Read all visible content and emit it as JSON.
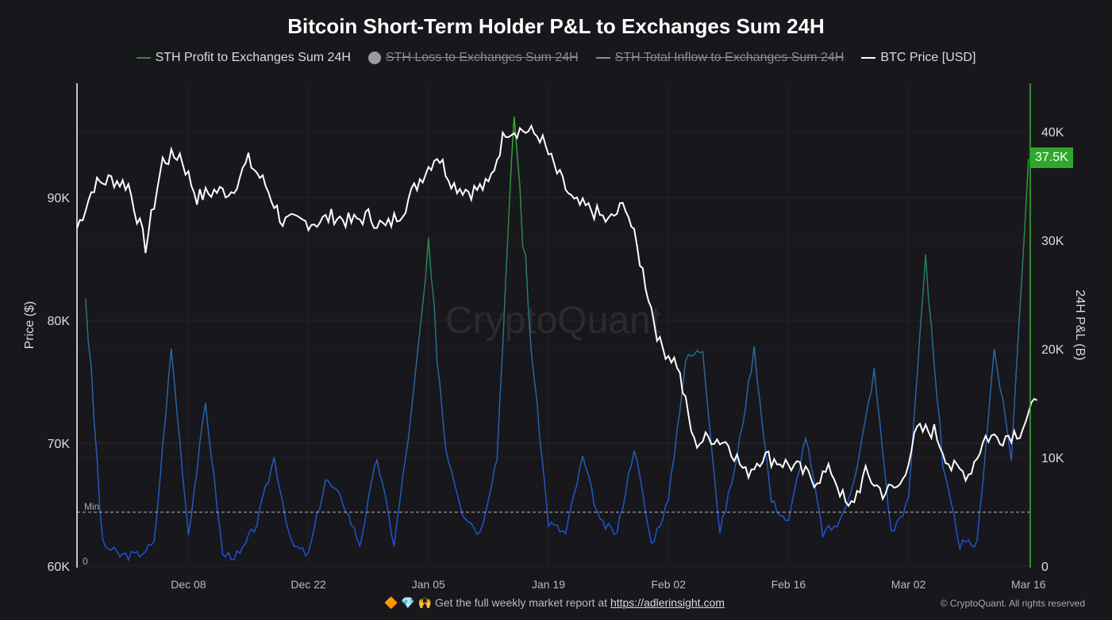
{
  "chart_data": {
    "type": "line",
    "title": "Bitcoin Short-Term Holder P&L to Exchanges Sum 24H",
    "legend": [
      {
        "label": "STH Profit to Exchanges Sum 24H",
        "color": "#3a8a3a",
        "enabled": true
      },
      {
        "label": "STH Loss to Exchanges Sum 24H",
        "color": "#9a9aa2",
        "enabled": false
      },
      {
        "label": "STH Total Inflow to Exchanges Sum 24H",
        "color": "#9a9aa2",
        "enabled": false
      },
      {
        "label": "BTC Price [USD]",
        "color": "#ffffff",
        "enabled": true
      }
    ],
    "ylabel_left": "Price ($)",
    "ylabel_right": "24H P&L (B)",
    "ylim_left": [
      60000,
      99000
    ],
    "ylim_right": [
      0,
      44500
    ],
    "left_ticks": [
      "60K",
      "70K",
      "80K",
      "90K"
    ],
    "left_tick_values": [
      60000,
      70000,
      80000,
      90000
    ],
    "right_ticks": [
      "0",
      "10K",
      "20K",
      "30K",
      "40K"
    ],
    "right_tick_values": [
      0,
      10000,
      20000,
      30000,
      40000
    ],
    "x_ticks": [
      "Dec 08",
      "Dec 22",
      "Jan 05",
      "Jan 19",
      "Feb 02",
      "Feb 16",
      "Mar 02",
      "Mar 16"
    ],
    "x_tick_days": [
      13,
      27,
      41,
      55,
      69,
      83,
      97,
      111
    ],
    "min_line": {
      "label": "Min",
      "value": 64400
    },
    "zero_label": "0",
    "last_value_tag": "37.5K",
    "watermark": "CryptoQuant",
    "x_start": "Nov 25",
    "price": {
      "day_step": 2,
      "values": [
        87500,
        91000,
        91500,
        91000,
        86000,
        93000,
        93500,
        90000,
        90500,
        90500,
        93000,
        91000,
        88000,
        88000,
        88000,
        88500,
        88000,
        88500,
        87500,
        89000,
        91500,
        93500,
        91000,
        90500,
        91000,
        95500,
        95500,
        95000,
        92000,
        89500,
        89000,
        88000,
        89500,
        84000,
        78000,
        76500,
        70000,
        70500,
        70000,
        67500,
        69000,
        68500,
        68000,
        67000,
        67800,
        64500,
        67500,
        66000,
        66500,
        71000,
        71000,
        68000,
        67500,
        70500,
        70500,
        71000,
        73500
      ]
    },
    "profit": {
      "day_step": 2,
      "day_offset": 1,
      "values": [
        25000,
        2000,
        1000,
        1000,
        2000,
        20000,
        3000,
        15000,
        1000,
        1000,
        4000,
        10000,
        2000,
        1000,
        8000,
        6000,
        2000,
        10000,
        2000,
        14000,
        29000,
        11000,
        5000,
        3000,
        10000,
        42000,
        20000,
        4000,
        3000,
        10000,
        4000,
        3000,
        11000,
        2000,
        6000,
        19000,
        20000,
        3000,
        10000,
        20000,
        6000,
        4000,
        12000,
        3000,
        4000,
        9000,
        18000,
        3000,
        6000,
        29000,
        9000,
        2000,
        2000,
        20000,
        10000,
        37500
      ]
    }
  },
  "footer": {
    "text": "Get the full weekly market report at ",
    "link": "https://adlerinsight.com",
    "emoji": "🔶 💎 🙌",
    "copyright": "© CryptoQuant. All rights reserved"
  }
}
